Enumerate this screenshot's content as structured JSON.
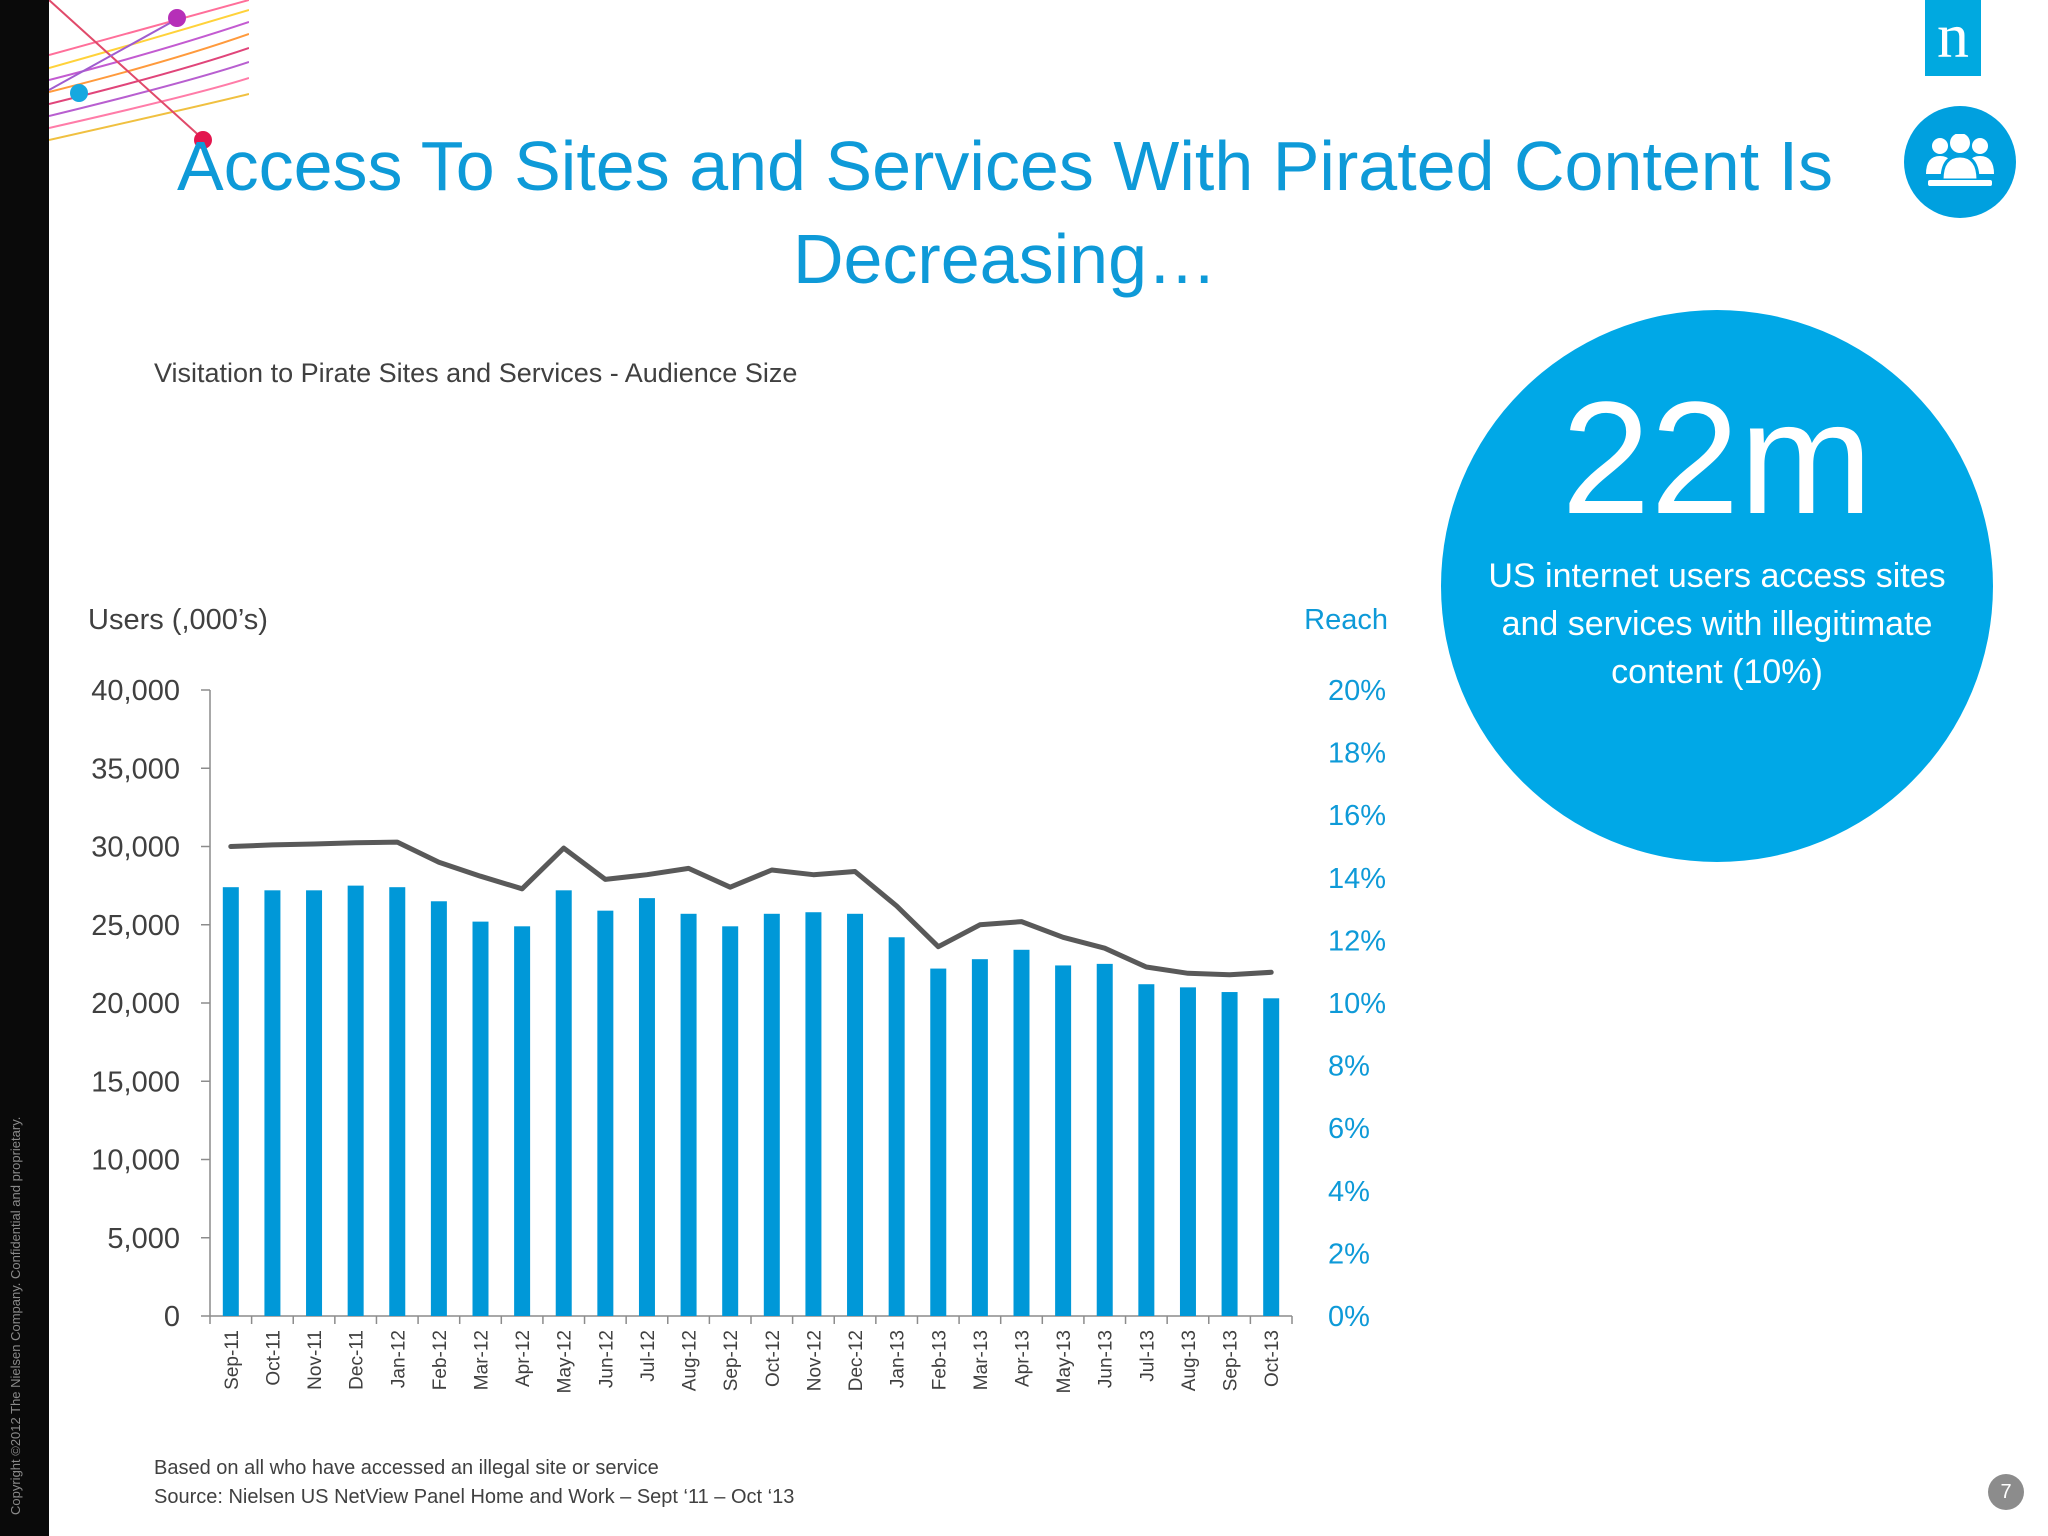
{
  "slide": {
    "title": "Access To Sites and Services With Pirated Content Is Decreasing…",
    "subtitle": "Visitation to Pirate Sites and Services - Audience Size",
    "copyright": "Copyright ©2012 The Nielsen Company. Confidential and proprietary.",
    "logo_letter": "n",
    "page_number": "7",
    "footnote_line1": "Based on all who have accessed an illegal site or service",
    "footnote_line2": "Source: Nielsen US NetView Panel Home and Work – Sept ‘11 – Oct ‘13"
  },
  "stat": {
    "value": "22m",
    "description": "US internet users access sites and services with illegitimate content (10%)"
  },
  "icons": {
    "logo": "nielsen-logo",
    "badge": "people-group-icon"
  },
  "colors": {
    "accent": "#0e9ad8",
    "bar": "#0098d8",
    "line": "#595959",
    "stat_circle": "#00a8e7",
    "left_strip": "#0a0a0a"
  },
  "chart_data": {
    "type": "bar",
    "title": "Visitation to Pirate Sites and Services - Audience Size",
    "ylabel": "Users (,000’s)",
    "y2label": "Reach",
    "ylim": [
      0,
      40000
    ],
    "y2lim": [
      0,
      20
    ],
    "yticks": [
      "0",
      "5,000",
      "10,000",
      "15,000",
      "20,000",
      "25,000",
      "30,000",
      "35,000",
      "40,000"
    ],
    "y2ticks": [
      "0%",
      "2%",
      "4%",
      "6%",
      "8%",
      "10%",
      "12%",
      "14%",
      "16%",
      "18%",
      "20%"
    ],
    "categories": [
      "Sep-11",
      "Oct-11",
      "Nov-11",
      "Dec-11",
      "Jan-12",
      "Feb-12",
      "Mar-12",
      "Apr-12",
      "May-12",
      "Jun-12",
      "Jul-12",
      "Aug-12",
      "Sep-12",
      "Oct-12",
      "Nov-12",
      "Dec-12",
      "Jan-13",
      "Feb-13",
      "Mar-13",
      "Apr-13",
      "May-13",
      "Jun-13",
      "Jul-13",
      "Aug-13",
      "Sep-13",
      "Oct-13"
    ],
    "series": [
      {
        "name": "Users (,000’s)",
        "type": "bar",
        "axis": "left",
        "values": [
          27400,
          27200,
          27200,
          27500,
          27400,
          26500,
          25200,
          24900,
          27200,
          25900,
          26700,
          25700,
          24900,
          25700,
          25800,
          25700,
          24200,
          22200,
          22800,
          23400,
          22400,
          22500,
          21200,
          21000,
          20700,
          20300
        ]
      },
      {
        "name": "Reach",
        "type": "line",
        "axis": "right",
        "values": [
          15.0,
          15.05,
          15.08,
          15.12,
          15.14,
          14.5,
          14.05,
          13.65,
          14.95,
          13.95,
          14.1,
          14.3,
          13.7,
          14.25,
          14.1,
          14.2,
          13.1,
          11.8,
          12.5,
          12.6,
          12.1,
          11.75,
          11.15,
          10.95,
          10.9,
          10.98
        ]
      }
    ],
    "grid": false,
    "legend": "none"
  }
}
